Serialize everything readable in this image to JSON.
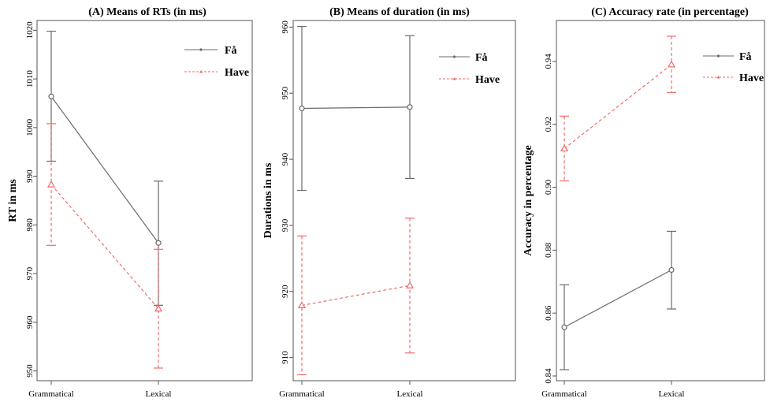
{
  "chart_data": [
    {
      "type": "line",
      "title": "(A) Means of RTs (in ms)",
      "xlabel": "",
      "ylabel": "RT in ms",
      "categories": [
        "Grammatical",
        "Lexical"
      ],
      "ylim": [
        948,
        1022
      ],
      "yticks": [
        950,
        960,
        970,
        980,
        990,
        1000,
        1010,
        1020
      ],
      "legend": "top-right",
      "series": [
        {
          "name": "Få",
          "color": "#6b6b6b",
          "dashed": false,
          "marker": "circle",
          "values": [
            1006.4,
            976.3
          ],
          "lower": [
            993.1,
            963.5
          ],
          "upper": [
            1019.8,
            989.0
          ]
        },
        {
          "name": "Have",
          "color": "#f06b6b",
          "dashed": true,
          "marker": "triangle",
          "values": [
            988.3,
            962.8
          ],
          "lower": [
            975.8,
            950.6
          ],
          "upper": [
            1000.8,
            975.0
          ]
        }
      ]
    },
    {
      "type": "line",
      "title": "(B) Means of duration (in ms)",
      "xlabel": "",
      "ylabel": "Durations in ms",
      "categories": [
        "Grammatical",
        "Lexical"
      ],
      "ylim": [
        906.5,
        961
      ],
      "yticks": [
        910,
        920,
        930,
        940,
        950,
        960
      ],
      "legend": "top-right",
      "series": [
        {
          "name": "Få",
          "color": "#6b6b6b",
          "dashed": false,
          "marker": "circle",
          "values": [
            947.7,
            947.9
          ],
          "lower": [
            935.3,
            937.1
          ],
          "upper": [
            960.1,
            958.7
          ]
        },
        {
          "name": "Have",
          "color": "#f06b6b",
          "dashed": true,
          "marker": "triangle",
          "values": [
            917.9,
            920.9
          ],
          "lower": [
            907.4,
            910.7
          ],
          "upper": [
            928.4,
            931.1
          ]
        }
      ]
    },
    {
      "type": "line",
      "title": "(C) Accuracy rate (in percentage)",
      "xlabel": "",
      "ylabel": "Accuracy in percentage",
      "categories": [
        "Grammatical",
        "Lexical"
      ],
      "ylim": [
        0.8385,
        0.953
      ],
      "yticks": [
        0.84,
        0.86,
        0.88,
        0.9,
        0.92,
        0.94
      ],
      "ytick_labels": [
        "0.84",
        "0.86",
        "0.88",
        "0.90",
        "0.92",
        "0.94"
      ],
      "legend": "top-right",
      "series": [
        {
          "name": "Få",
          "color": "#6b6b6b",
          "dashed": false,
          "marker": "circle",
          "values": [
            0.8555,
            0.8737
          ],
          "lower": [
            0.842,
            0.8613
          ],
          "upper": [
            0.869,
            0.886
          ]
        },
        {
          "name": "Have",
          "color": "#f06b6b",
          "dashed": true,
          "marker": "triangle",
          "values": [
            0.9123,
            0.939
          ],
          "lower": [
            0.902,
            0.9301
          ],
          "upper": [
            0.9226,
            0.948
          ]
        }
      ]
    }
  ]
}
